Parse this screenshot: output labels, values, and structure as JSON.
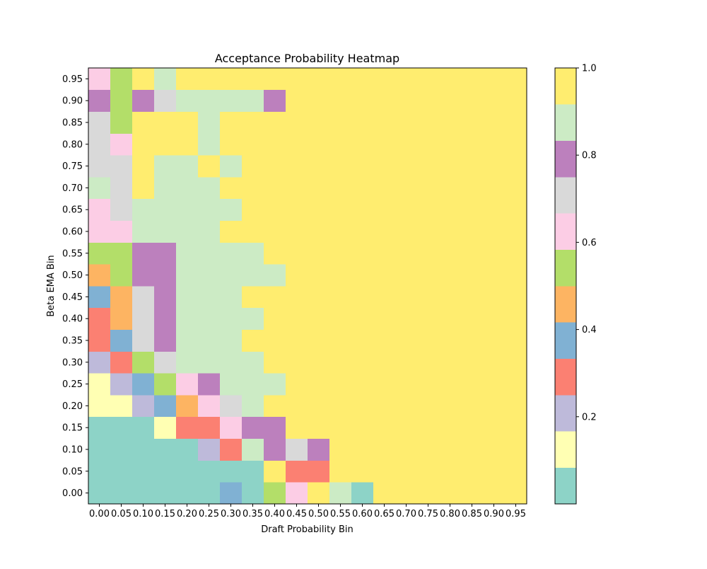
{
  "chart_data": {
    "type": "heatmap",
    "title": "Acceptance Probability Heatmap",
    "xlabel": "Draft Probability Bin",
    "ylabel": "Beta EMA Bin",
    "x_categories": [
      "0.00",
      "0.05",
      "0.10",
      "0.15",
      "0.20",
      "0.25",
      "0.30",
      "0.35",
      "0.40",
      "0.45",
      "0.50",
      "0.55",
      "0.60",
      "0.65",
      "0.70",
      "0.75",
      "0.80",
      "0.85",
      "0.90",
      "0.95"
    ],
    "y_categories": [
      "0.00",
      "0.05",
      "0.10",
      "0.15",
      "0.20",
      "0.25",
      "0.30",
      "0.35",
      "0.40",
      "0.45",
      "0.50",
      "0.55",
      "0.60",
      "0.65",
      "0.70",
      "0.75",
      "0.80",
      "0.85",
      "0.90",
      "0.95"
    ],
    "colormap": "Set3",
    "colorbar": {
      "range": [
        0,
        1
      ],
      "ticks": [
        0.2,
        0.4,
        0.6,
        0.8,
        1.0
      ],
      "tick_labels": [
        "0.2",
        "0.4",
        "0.6",
        "0.8",
        "1.0"
      ],
      "colors": [
        "#8dd3c7",
        "#ffffb3",
        "#bebada",
        "#fb8072",
        "#80b1d3",
        "#fdb462",
        "#b3de69",
        "#fccde5",
        "#d9d9d9",
        "#bc80bd",
        "#ccebc5",
        "#ffed6f"
      ]
    },
    "values": [
      [
        0.0,
        0.0,
        0.0,
        0.0,
        0.0,
        0.0,
        0.38,
        0.0,
        0.55,
        0.65,
        1.0,
        0.9,
        0.0,
        1.0,
        1.0,
        1.0,
        1.0,
        1.0,
        1.0,
        1.0
      ],
      [
        0.0,
        0.0,
        0.0,
        0.0,
        0.0,
        0.0,
        0.0,
        0.0,
        1.0,
        0.3,
        0.3,
        1.0,
        1.0,
        1.0,
        1.0,
        1.0,
        1.0,
        1.0,
        1.0,
        1.0
      ],
      [
        0.0,
        0.0,
        0.0,
        0.0,
        0.0,
        0.2,
        0.3,
        0.9,
        0.8,
        0.7,
        0.8,
        1.0,
        1.0,
        1.0,
        1.0,
        1.0,
        1.0,
        1.0,
        1.0,
        1.0
      ],
      [
        0.0,
        0.0,
        0.0,
        0.1,
        0.3,
        0.3,
        0.65,
        0.8,
        0.8,
        1.0,
        1.0,
        1.0,
        1.0,
        1.0,
        1.0,
        1.0,
        1.0,
        1.0,
        1.0,
        1.0
      ],
      [
        0.1,
        0.1,
        0.2,
        0.38,
        0.45,
        0.65,
        0.7,
        0.9,
        1.0,
        1.0,
        1.0,
        1.0,
        1.0,
        1.0,
        1.0,
        1.0,
        1.0,
        1.0,
        1.0,
        1.0
      ],
      [
        0.1,
        0.2,
        0.38,
        0.55,
        0.65,
        0.8,
        0.9,
        0.9,
        0.9,
        1.0,
        1.0,
        1.0,
        1.0,
        1.0,
        1.0,
        1.0,
        1.0,
        1.0,
        1.0,
        1.0
      ],
      [
        0.2,
        0.3,
        0.55,
        0.7,
        0.9,
        0.9,
        0.9,
        0.9,
        1.0,
        1.0,
        1.0,
        1.0,
        1.0,
        1.0,
        1.0,
        1.0,
        1.0,
        1.0,
        1.0,
        1.0
      ],
      [
        0.3,
        0.38,
        0.7,
        0.8,
        0.9,
        0.9,
        0.9,
        1.0,
        1.0,
        1.0,
        1.0,
        1.0,
        1.0,
        1.0,
        1.0,
        1.0,
        1.0,
        1.0,
        1.0,
        1.0
      ],
      [
        0.3,
        0.45,
        0.7,
        0.8,
        0.9,
        0.9,
        0.9,
        0.9,
        1.0,
        1.0,
        1.0,
        1.0,
        1.0,
        1.0,
        1.0,
        1.0,
        1.0,
        1.0,
        1.0,
        1.0
      ],
      [
        0.38,
        0.45,
        0.7,
        0.8,
        0.9,
        0.9,
        0.9,
        1.0,
        1.0,
        1.0,
        1.0,
        1.0,
        1.0,
        1.0,
        1.0,
        1.0,
        1.0,
        1.0,
        1.0,
        1.0
      ],
      [
        0.45,
        0.55,
        0.8,
        0.8,
        0.9,
        0.9,
        0.9,
        0.9,
        0.9,
        1.0,
        1.0,
        1.0,
        1.0,
        1.0,
        1.0,
        1.0,
        1.0,
        1.0,
        1.0,
        1.0
      ],
      [
        0.55,
        0.55,
        0.8,
        0.8,
        0.9,
        0.9,
        0.9,
        0.9,
        1.0,
        1.0,
        1.0,
        1.0,
        1.0,
        1.0,
        1.0,
        1.0,
        1.0,
        1.0,
        1.0,
        1.0
      ],
      [
        0.65,
        0.65,
        0.9,
        0.9,
        0.9,
        0.9,
        1.0,
        1.0,
        1.0,
        1.0,
        1.0,
        1.0,
        1.0,
        1.0,
        1.0,
        1.0,
        1.0,
        1.0,
        1.0,
        1.0
      ],
      [
        0.65,
        0.7,
        0.9,
        0.9,
        0.9,
        0.9,
        0.9,
        1.0,
        1.0,
        1.0,
        1.0,
        1.0,
        1.0,
        1.0,
        1.0,
        1.0,
        1.0,
        1.0,
        1.0,
        1.0
      ],
      [
        0.9,
        0.7,
        1.0,
        0.9,
        0.9,
        0.9,
        1.0,
        1.0,
        1.0,
        1.0,
        1.0,
        1.0,
        1.0,
        1.0,
        1.0,
        1.0,
        1.0,
        1.0,
        1.0,
        1.0
      ],
      [
        0.7,
        0.7,
        1.0,
        0.9,
        0.9,
        1.0,
        0.9,
        1.0,
        1.0,
        1.0,
        1.0,
        1.0,
        1.0,
        1.0,
        1.0,
        1.0,
        1.0,
        1.0,
        1.0,
        1.0
      ],
      [
        0.7,
        0.65,
        1.0,
        1.0,
        1.0,
        0.9,
        1.0,
        1.0,
        1.0,
        1.0,
        1.0,
        1.0,
        1.0,
        1.0,
        1.0,
        1.0,
        1.0,
        1.0,
        1.0,
        1.0
      ],
      [
        0.7,
        0.55,
        1.0,
        1.0,
        1.0,
        0.9,
        1.0,
        1.0,
        1.0,
        1.0,
        1.0,
        1.0,
        1.0,
        1.0,
        1.0,
        1.0,
        1.0,
        1.0,
        1.0,
        1.0
      ],
      [
        0.8,
        0.55,
        0.8,
        0.7,
        0.9,
        0.9,
        0.9,
        0.9,
        0.8,
        1.0,
        1.0,
        1.0,
        1.0,
        1.0,
        1.0,
        1.0,
        1.0,
        1.0,
        1.0,
        1.0
      ],
      [
        0.65,
        0.55,
        1.0,
        0.9,
        1.0,
        1.0,
        1.0,
        1.0,
        1.0,
        1.0,
        1.0,
        1.0,
        1.0,
        1.0,
        1.0,
        1.0,
        1.0,
        1.0,
        1.0,
        1.0
      ]
    ]
  }
}
